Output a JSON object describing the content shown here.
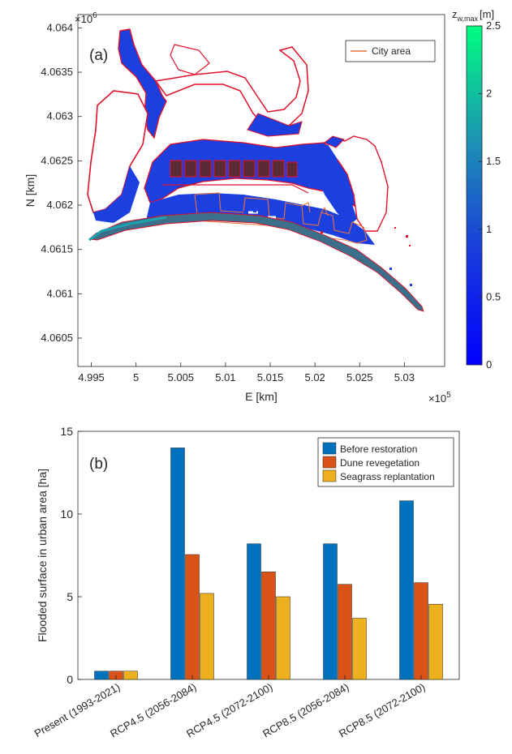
{
  "chart_data": [
    {
      "type": "heatmap",
      "panel_label": "(a)",
      "xlabel": "E [km]",
      "ylabel": "N [km]",
      "x_exponent": "×10",
      "x_exponent_power": "5",
      "y_exponent": "×10",
      "y_exponent_power": "6",
      "xticks": [
        "4.995",
        "5",
        "5.005",
        "5.01",
        "5.015",
        "5.02",
        "5.025",
        "5.03"
      ],
      "xtick_values": [
        4.995,
        5.0,
        5.005,
        5.01,
        5.015,
        5.02,
        5.025,
        5.03
      ],
      "xlim": [
        4.9935,
        5.0345
      ],
      "yticks": [
        "4.064",
        "4.0635",
        "4.063",
        "4.0625",
        "4.062",
        "4.0615",
        "4.061",
        "4.0605"
      ],
      "ytick_values": [
        4.064,
        4.0635,
        4.063,
        4.0625,
        4.062,
        4.0615,
        4.061,
        4.0605
      ],
      "ylim": [
        4.06018,
        4.06415
      ],
      "legend": {
        "label": "City area",
        "color": "#e8743b",
        "placement": "top-right"
      },
      "colorbar": {
        "label": "z",
        "label_sub": "w,max",
        "unit": "[m]",
        "ticks": [
          "2.5",
          "2",
          "1.5",
          "1",
          "0.5",
          "0"
        ],
        "tick_values": [
          2.5,
          2.0,
          1.5,
          1.0,
          0.5,
          0.0
        ],
        "range": [
          0,
          2.5
        ],
        "colors": [
          "#0000ff",
          "#00ff80"
        ]
      },
      "map_colors": {
        "flood": "#1c3fe0",
        "city_outline": "#e8743b",
        "red_edges": "#e0102a",
        "coast": "#3c6f8a"
      }
    },
    {
      "type": "bar",
      "panel_label": "(b)",
      "ylabel": "Flooded surface in urban area [ha]",
      "xlabel": "",
      "ylim": [
        0,
        15
      ],
      "yticks": [
        0,
        5,
        10,
        15
      ],
      "legend_placement": "top-right",
      "categories": [
        "Present (1993-2021)",
        "RCP4.5 (2056-2084)",
        "RCP4.5 (2072-2100)",
        "RCP8.5 (2056-2084)",
        "RCP8.5 (2072-2100)"
      ],
      "series": [
        {
          "name": "Before restoration",
          "color": "#0072bd",
          "values": [
            0.5,
            14.0,
            8.2,
            8.2,
            10.8
          ]
        },
        {
          "name": "Dune revegetation",
          "color": "#d95319",
          "values": [
            0.5,
            7.55,
            6.5,
            5.75,
            5.85
          ]
        },
        {
          "name": "Seagrass replantation",
          "color": "#edb120",
          "values": [
            0.5,
            5.2,
            5.0,
            3.7,
            4.55
          ]
        }
      ]
    }
  ]
}
